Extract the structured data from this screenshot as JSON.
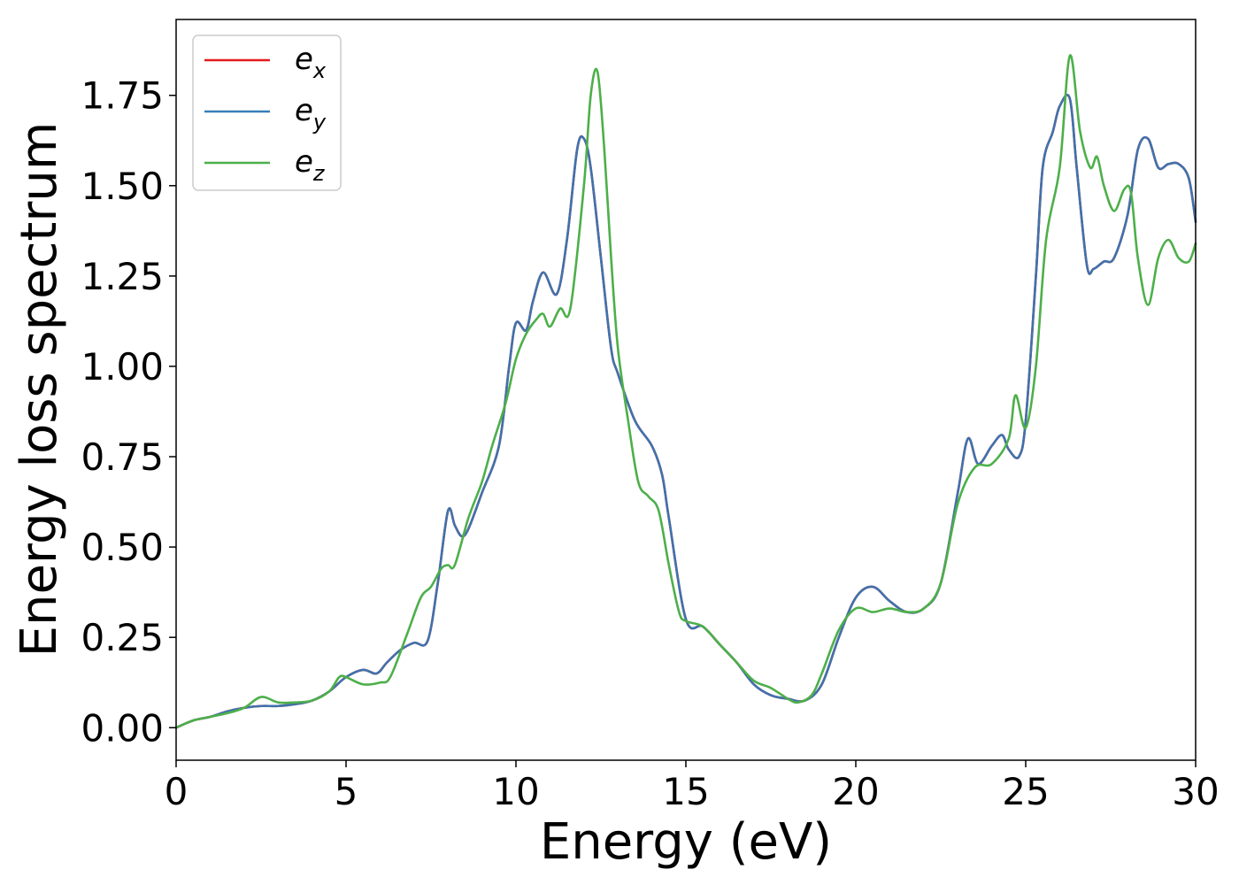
{
  "chart_data": {
    "type": "line",
    "xlabel": "Energy (eV)",
    "ylabel": "Energy loss spectrum",
    "xlim": [
      0,
      30
    ],
    "ylim": [
      -0.09,
      1.96
    ],
    "xticks": [
      0,
      5,
      10,
      15,
      20,
      25,
      30
    ],
    "xtick_labels": [
      "0",
      "5",
      "10",
      "15",
      "20",
      "25",
      "30"
    ],
    "yticks": [
      0.0,
      0.25,
      0.5,
      0.75,
      1.0,
      1.25,
      1.5,
      1.75
    ],
    "ytick_labels": [
      "0.00",
      "0.25",
      "0.50",
      "0.75",
      "1.00",
      "1.25",
      "1.50",
      "1.75"
    ],
    "grid": false,
    "legend": {
      "placement": "top-left",
      "entries": [
        {
          "base": "e",
          "sub": "x",
          "color": "#e41a1c"
        },
        {
          "base": "e",
          "sub": "y",
          "color": "#377eb8"
        },
        {
          "base": "e",
          "sub": "z",
          "color": "#4daf4a"
        }
      ]
    },
    "series": [
      {
        "name": "ex",
        "color": "#e41a1c",
        "x": [
          0,
          0.5,
          1.0,
          1.5,
          2.0,
          2.5,
          3.0,
          3.5,
          4.0,
          4.5,
          5.0,
          5.5,
          5.9,
          6.2,
          6.6,
          7.0,
          7.4,
          7.7,
          8.0,
          8.2,
          8.4,
          8.6,
          9.0,
          9.5,
          9.8,
          10.0,
          10.3,
          10.5,
          10.8,
          11.2,
          11.5,
          11.8,
          12.0,
          12.2,
          12.5,
          12.8,
          13.0,
          13.5,
          14.0,
          14.3,
          14.5,
          15.0,
          15.5,
          16.0,
          16.5,
          17.0,
          17.5,
          18.0,
          18.5,
          19.0,
          19.5,
          20.0,
          20.5,
          21.0,
          21.5,
          22.0,
          22.5,
          23.0,
          23.3,
          23.6,
          24.0,
          24.3,
          24.5,
          24.8,
          25.0,
          25.3,
          25.5,
          25.8,
          26.0,
          26.3,
          26.5,
          26.8,
          27.0,
          27.3,
          27.6,
          28.0,
          28.3,
          28.6,
          28.9,
          29.2,
          29.5,
          29.8,
          30.0
        ],
        "y": [
          0.0,
          0.02,
          0.03,
          0.045,
          0.055,
          0.06,
          0.06,
          0.065,
          0.075,
          0.1,
          0.14,
          0.16,
          0.15,
          0.18,
          0.215,
          0.235,
          0.24,
          0.4,
          0.6,
          0.56,
          0.53,
          0.55,
          0.65,
          0.78,
          1.0,
          1.12,
          1.1,
          1.18,
          1.26,
          1.2,
          1.35,
          1.6,
          1.63,
          1.55,
          1.3,
          1.05,
          0.98,
          0.85,
          0.78,
          0.7,
          0.58,
          0.3,
          0.28,
          0.23,
          0.18,
          0.12,
          0.09,
          0.08,
          0.075,
          0.12,
          0.25,
          0.36,
          0.39,
          0.35,
          0.32,
          0.33,
          0.4,
          0.65,
          0.8,
          0.73,
          0.78,
          0.81,
          0.77,
          0.75,
          0.85,
          1.25,
          1.55,
          1.65,
          1.72,
          1.74,
          1.55,
          1.28,
          1.27,
          1.29,
          1.3,
          1.42,
          1.6,
          1.63,
          1.55,
          1.56,
          1.56,
          1.52,
          1.4
        ]
      },
      {
        "name": "ey",
        "color": "#3f72ad",
        "x": [
          0,
          0.5,
          1.0,
          1.5,
          2.0,
          2.5,
          3.0,
          3.5,
          4.0,
          4.5,
          5.0,
          5.5,
          5.9,
          6.2,
          6.6,
          7.0,
          7.4,
          7.7,
          8.0,
          8.2,
          8.4,
          8.6,
          9.0,
          9.5,
          9.8,
          10.0,
          10.3,
          10.5,
          10.8,
          11.2,
          11.5,
          11.8,
          12.0,
          12.2,
          12.5,
          12.8,
          13.0,
          13.5,
          14.0,
          14.3,
          14.5,
          15.0,
          15.5,
          16.0,
          16.5,
          17.0,
          17.5,
          18.0,
          18.5,
          19.0,
          19.5,
          20.0,
          20.5,
          21.0,
          21.5,
          22.0,
          22.5,
          23.0,
          23.3,
          23.6,
          24.0,
          24.3,
          24.5,
          24.8,
          25.0,
          25.3,
          25.5,
          25.8,
          26.0,
          26.3,
          26.5,
          26.8,
          27.0,
          27.3,
          27.6,
          28.0,
          28.3,
          28.6,
          28.9,
          29.2,
          29.5,
          29.8,
          30.0
        ],
        "y": [
          0.0,
          0.02,
          0.03,
          0.045,
          0.055,
          0.06,
          0.06,
          0.065,
          0.075,
          0.1,
          0.14,
          0.16,
          0.15,
          0.18,
          0.215,
          0.235,
          0.24,
          0.4,
          0.6,
          0.56,
          0.53,
          0.55,
          0.65,
          0.78,
          1.0,
          1.12,
          1.1,
          1.18,
          1.26,
          1.2,
          1.35,
          1.6,
          1.63,
          1.55,
          1.3,
          1.05,
          0.98,
          0.85,
          0.78,
          0.7,
          0.58,
          0.3,
          0.28,
          0.23,
          0.18,
          0.12,
          0.09,
          0.08,
          0.075,
          0.12,
          0.25,
          0.36,
          0.39,
          0.35,
          0.32,
          0.33,
          0.4,
          0.65,
          0.8,
          0.73,
          0.78,
          0.81,
          0.77,
          0.75,
          0.85,
          1.25,
          1.55,
          1.65,
          1.72,
          1.74,
          1.55,
          1.28,
          1.27,
          1.29,
          1.3,
          1.42,
          1.6,
          1.63,
          1.55,
          1.56,
          1.56,
          1.52,
          1.4
        ]
      },
      {
        "name": "ez",
        "color": "#4daf4a",
        "x": [
          0,
          0.5,
          1.0,
          1.5,
          2.0,
          2.5,
          3.0,
          3.5,
          4.0,
          4.5,
          4.8,
          5.0,
          5.5,
          6.0,
          6.3,
          6.8,
          7.2,
          7.5,
          7.8,
          8.0,
          8.2,
          8.6,
          9.0,
          9.3,
          9.7,
          10.0,
          10.3,
          10.6,
          10.8,
          11.0,
          11.3,
          11.6,
          12.0,
          12.2,
          12.4,
          12.6,
          12.8,
          13.0,
          13.3,
          13.6,
          13.9,
          14.2,
          14.5,
          14.8,
          15.0,
          15.5,
          16.0,
          16.5,
          17.0,
          17.5,
          18.0,
          18.3,
          18.7,
          19.0,
          19.5,
          20.0,
          20.5,
          21.0,
          21.5,
          22.0,
          22.5,
          23.0,
          23.5,
          24.0,
          24.5,
          24.7,
          25.0,
          25.3,
          25.6,
          26.0,
          26.3,
          26.6,
          26.9,
          27.1,
          27.3,
          27.6,
          27.9,
          28.1,
          28.3,
          28.6,
          28.9,
          29.2,
          29.5,
          29.8,
          30.0
        ],
        "y": [
          0.0,
          0.02,
          0.03,
          0.04,
          0.055,
          0.085,
          0.07,
          0.07,
          0.075,
          0.1,
          0.14,
          0.14,
          0.12,
          0.125,
          0.14,
          0.26,
          0.36,
          0.39,
          0.44,
          0.45,
          0.45,
          0.58,
          0.68,
          0.78,
          0.9,
          1.02,
          1.09,
          1.13,
          1.145,
          1.11,
          1.16,
          1.16,
          1.5,
          1.75,
          1.815,
          1.6,
          1.3,
          1.05,
          0.85,
          0.68,
          0.64,
          0.6,
          0.45,
          0.32,
          0.295,
          0.28,
          0.23,
          0.18,
          0.13,
          0.11,
          0.08,
          0.07,
          0.09,
          0.15,
          0.27,
          0.33,
          0.32,
          0.33,
          0.32,
          0.33,
          0.4,
          0.62,
          0.72,
          0.73,
          0.8,
          0.92,
          0.83,
          1.0,
          1.35,
          1.55,
          1.86,
          1.65,
          1.55,
          1.58,
          1.5,
          1.43,
          1.49,
          1.48,
          1.3,
          1.17,
          1.3,
          1.35,
          1.3,
          1.29,
          1.34
        ]
      }
    ]
  }
}
